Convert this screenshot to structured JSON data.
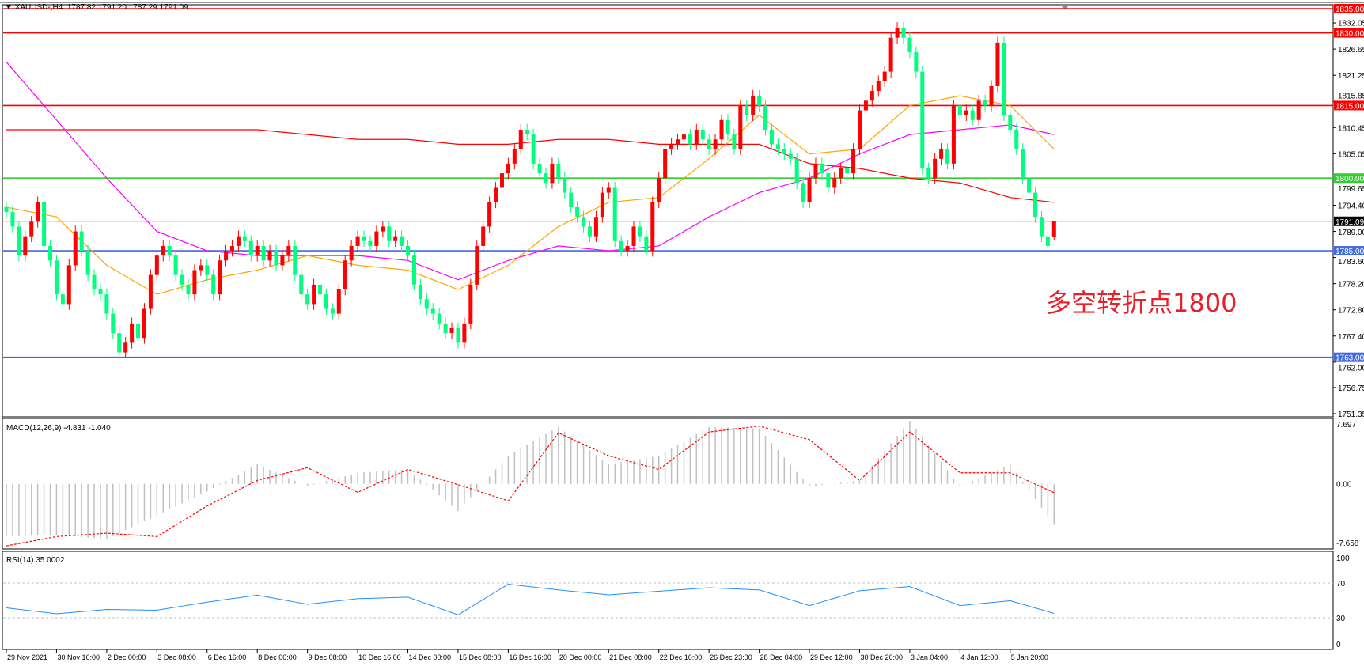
{
  "header": {
    "symbol": "XAUUSD-,H4",
    "ohlc_text": "1787.82 1791.20 1787.29 1791.09"
  },
  "annotation": "多空转折点1800",
  "colors": {
    "bull": "#ff0000",
    "bear": "#00ff7f",
    "ma_fast": "#ffa500",
    "ma_mid": "#ff00ff",
    "ma_slow": "#ff0000",
    "rsi": "#1e90ff",
    "macd_hist": "#c0c0c0",
    "macd_signal": "#ff0000"
  },
  "chart_data": [
    {
      "type": "candlestick",
      "title": "XAUUSD-,H4",
      "ylim": [
        1751.35,
        1835.0
      ],
      "y_ticks": [
        "1832.05",
        "1826.65",
        "1821.25",
        "1815.85",
        "1810.45",
        "1805.05",
        "1799.65",
        "1794.40",
        "1789.00",
        "1783.60",
        "1778.20",
        "1772.80",
        "1767.40",
        "1762.00",
        "1756.75",
        "1751.35"
      ],
      "x_tick_labels": [
        "29 Nov 2021",
        "30 Nov 16:00",
        "2 Dec 00:00",
        "3 Dec 08:00",
        "6 Dec 16:00",
        "8 Dec 00:00",
        "9 Dec 08:00",
        "10 Dec 16:00",
        "14 Dec 00:00",
        "15 Dec 08:00",
        "16 Dec 16:00",
        "20 Dec 00:00",
        "21 Dec 08:00",
        "22 Dec 16:00",
        "26 Dec 23:00",
        "28 Dec 04:00",
        "29 Dec 12:00",
        "30 Dec 20:00",
        "3 Jan 04:00",
        "4 Jan 12:00",
        "5 Jan 20:00"
      ],
      "first_open": 1794,
      "closes": [
        1793,
        1790,
        1784,
        1788,
        1791,
        1795,
        1786,
        1783,
        1776,
        1774,
        1782,
        1789,
        1785,
        1780,
        1777,
        1776,
        1772,
        1768,
        1764,
        1766,
        1770,
        1767,
        1773,
        1780,
        1784,
        1786,
        1784,
        1780,
        1778,
        1776,
        1781,
        1782,
        1780,
        1776,
        1783,
        1785,
        1786,
        1788,
        1787,
        1784,
        1786,
        1783,
        1785,
        1782,
        1784,
        1786,
        1780,
        1776,
        1774,
        1778,
        1776,
        1773,
        1772,
        1777,
        1783,
        1786,
        1788,
        1787,
        1786,
        1789,
        1790,
        1787,
        1788,
        1786,
        1784,
        1778,
        1775,
        1773,
        1772,
        1770,
        1768,
        1769,
        1766,
        1770,
        1778,
        1786,
        1790,
        1795,
        1798,
        1801,
        1803,
        1806,
        1810,
        1809,
        1803,
        1801,
        1799,
        1803,
        1800,
        1797,
        1794,
        1792,
        1790,
        1788,
        1792,
        1797,
        1798,
        1787,
        1785,
        1786,
        1790,
        1788,
        1785,
        1795,
        1800,
        1806,
        1807,
        1808,
        1809,
        1807,
        1810,
        1808,
        1806,
        1808,
        1812,
        1809,
        1806,
        1815,
        1813,
        1817,
        1815,
        1810,
        1807,
        1806,
        1805,
        1804,
        1799,
        1795,
        1800,
        1803,
        1801,
        1798,
        1800,
        1802,
        1801,
        1806,
        1814,
        1816,
        1818,
        1820,
        1822,
        1829,
        1831,
        1829,
        1826,
        1822,
        1802,
        1800,
        1804,
        1806,
        1803,
        1815,
        1813,
        1814,
        1812,
        1816,
        1815,
        1819,
        1828,
        1813,
        1810,
        1806,
        1800,
        1797,
        1792,
        1788,
        1786,
        1791.09
      ],
      "last_bar": {
        "open": 1787.82,
        "high": 1791.2,
        "low": 1787.29,
        "close": 1791.09
      },
      "moving_averages_at_ticks": {
        "fast": [
          1794,
          1792,
          1782,
          1776,
          1779,
          1781,
          1784,
          1782,
          1781,
          1777,
          1782,
          1790,
          1795,
          1796,
          1804,
          1813,
          1805,
          1806,
          1815,
          1817,
          1815,
          1806
        ],
        "mid": [
          1824,
          1812,
          1800,
          1789,
          1785,
          1784,
          1784,
          1784,
          1783,
          1779,
          1783,
          1786,
          1785,
          1786,
          1792,
          1797,
          1800,
          1805,
          1809,
          1810,
          1811,
          1809
        ],
        "slow": [
          1810,
          1810,
          1810,
          1810,
          1810,
          1810,
          1809,
          1808,
          1808,
          1807,
          1807,
          1808,
          1808,
          1807,
          1807,
          1807,
          1803,
          1802,
          1800,
          1799,
          1796,
          1795
        ]
      },
      "horizontal_lines": [
        {
          "price": "1835.00",
          "color": "#ff0000"
        },
        {
          "price": "1830.00",
          "color": "#ff0000"
        },
        {
          "price": "1815.00",
          "color": "#ff0000"
        },
        {
          "price": "1800.00",
          "color": "#33cc33"
        },
        {
          "price": "1791.09",
          "color": "#778899",
          "current": true
        },
        {
          "price": "1785.00",
          "color": "#4169e1"
        },
        {
          "price": "1763.00",
          "color": "#4169e1"
        }
      ]
    },
    {
      "type": "bar",
      "title": "MACD(12,26,9) -4.831 -1.040",
      "ylim": [
        -7.658,
        7.697
      ],
      "y_ticks": [
        "7.697",
        "0.00",
        "-7.658"
      ],
      "histogram_at_ticks": [
        -6.2,
        -6.0,
        -6.5,
        -3.7,
        -0.9,
        2.3,
        -0.3,
        1.3,
        1.7,
        -3.2,
        3.3,
        6.7,
        2.3,
        3.3,
        6.7,
        6.5,
        -0.3,
        0.4,
        7.4,
        -0.3,
        2.3,
        -4.831
      ],
      "signal_at_ticks": [
        -7.3,
        -6.2,
        -5.8,
        -6.2,
        -2.6,
        0.4,
        1.9,
        -1.0,
        1.7,
        -0.1,
        -2.0,
        6.0,
        3.3,
        1.7,
        6.1,
        6.8,
        5.2,
        0.4,
        6.1,
        1.3,
        1.3,
        -1.04
      ]
    },
    {
      "type": "line",
      "title": "RSI(14) 35.0002",
      "ylim": [
        0,
        100
      ],
      "y_ticks": [
        "100",
        "70",
        "30",
        "0"
      ],
      "levels": [
        70,
        30
      ],
      "values_at_ticks": [
        41.4,
        34.6,
        39.5,
        38.7,
        48,
        56,
        45.5,
        52,
        53.7,
        33.3,
        68.6,
        62,
        56.4,
        60.5,
        64.5,
        62,
        44,
        61,
        65.9,
        44,
        49.6,
        35.0
      ]
    }
  ]
}
